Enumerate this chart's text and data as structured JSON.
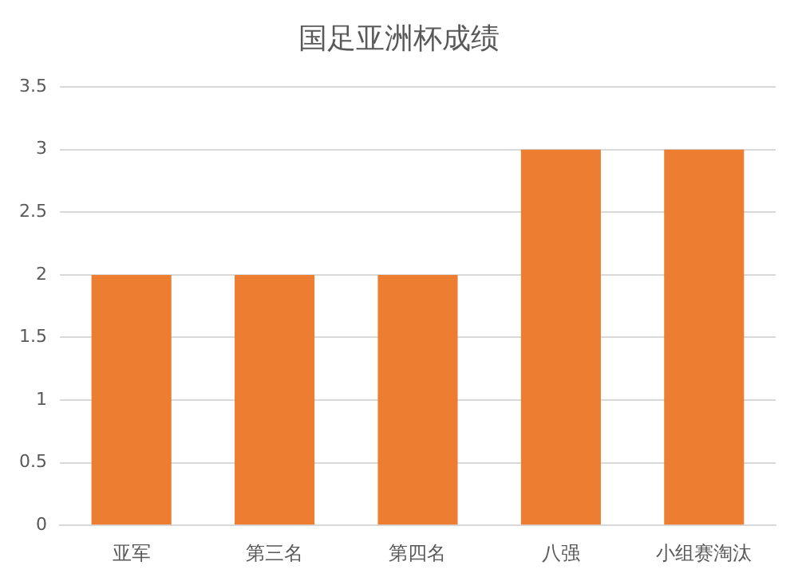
{
  "chart_data": {
    "type": "bar",
    "title": "国足亚洲杯成绩",
    "categories": [
      "亚军",
      "第三名",
      "第四名",
      "八强",
      "小组赛淘汰"
    ],
    "values": [
      2,
      2,
      2,
      3,
      3
    ],
    "color": "#ed7d31",
    "ylim": [
      0,
      3.5
    ],
    "yticks": [
      0,
      0.5,
      1,
      1.5,
      2,
      2.5,
      3,
      3.5
    ],
    "grid": "y"
  }
}
